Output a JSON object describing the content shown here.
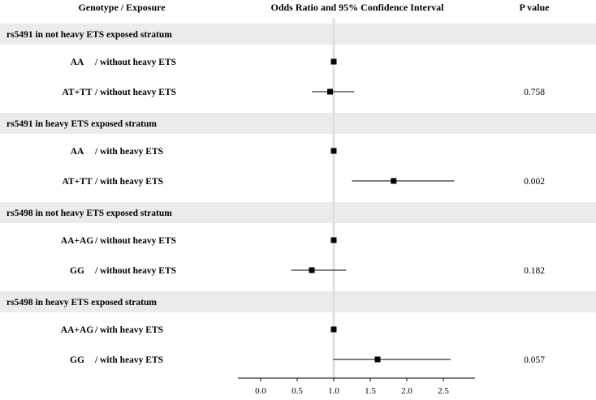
{
  "headers": {
    "genotype": "Genotype / Exposure",
    "ci": "Odds Ratio and 95% Confidence Interval",
    "pvalue": "P value"
  },
  "chart_data": {
    "type": "forest",
    "xlim": [
      -0.3,
      2.9
    ],
    "ticks": [
      "0.0",
      "0.5",
      "1.0",
      "1.5",
      "2.0",
      "2.5"
    ],
    "reference_line": 1.0,
    "groups": [
      {
        "title": "rs5491 in not heavy ETS exposed stratum",
        "rows": [
          {
            "genotype": "AA",
            "exposure": "/ without heavy ETS",
            "or": 1.0,
            "lo": null,
            "hi": null,
            "p": ""
          },
          {
            "genotype": "AT+TT",
            "exposure": "/ without heavy ETS",
            "or": 0.95,
            "lo": 0.7,
            "hi": 1.28,
            "p": "0.758"
          }
        ]
      },
      {
        "title": "rs5491 in heavy ETS exposed stratum",
        "rows": [
          {
            "genotype": "AA",
            "exposure": "/ with heavy ETS",
            "or": 1.0,
            "lo": null,
            "hi": null,
            "p": ""
          },
          {
            "genotype": "AT+TT",
            "exposure": "/ with heavy ETS",
            "or": 1.82,
            "lo": 1.25,
            "hi": 2.65,
            "p": "0.002"
          }
        ]
      },
      {
        "title": "rs5498 in not heavy ETS exposed stratum",
        "rows": [
          {
            "genotype": "AA+AG",
            "exposure": "/ without heavy ETS",
            "or": 1.0,
            "lo": null,
            "hi": null,
            "p": ""
          },
          {
            "genotype": "GG",
            "exposure": "/ without heavy ETS",
            "or": 0.7,
            "lo": 0.42,
            "hi": 1.17,
            "p": "0.182"
          }
        ]
      },
      {
        "title": "rs5498 in heavy ETS exposed stratum",
        "rows": [
          {
            "genotype": "AA+AG",
            "exposure": "/ with heavy ETS",
            "or": 1.0,
            "lo": null,
            "hi": null,
            "p": ""
          },
          {
            "genotype": "GG",
            "exposure": "/ with heavy ETS",
            "or": 1.6,
            "lo": 0.99,
            "hi": 2.6,
            "p": "0.057"
          }
        ]
      }
    ]
  }
}
